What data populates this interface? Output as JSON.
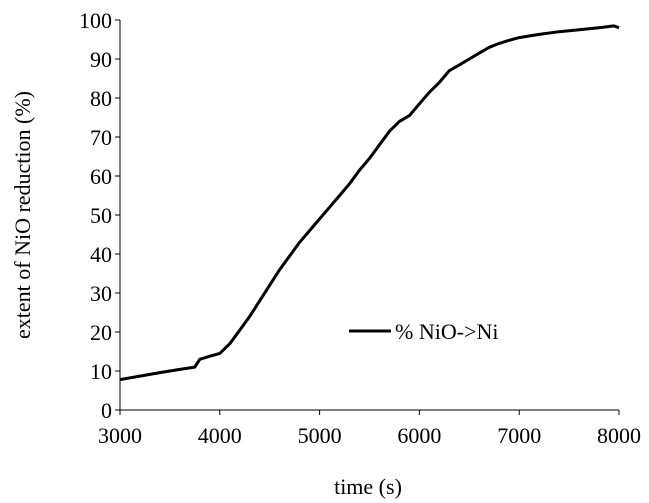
{
  "chart_data": {
    "type": "line",
    "title": "",
    "xlabel": "time (s)",
    "ylabel": "extent of NiO reduction (%)",
    "xlim": [
      3000,
      8000
    ],
    "ylim": [
      0,
      100
    ],
    "xticks": [
      3000,
      4000,
      5000,
      6000,
      7000,
      8000
    ],
    "yticks": [
      0,
      10,
      20,
      30,
      40,
      50,
      60,
      70,
      80,
      90,
      100
    ],
    "xtick_labels": [
      "3000",
      "4000",
      "5000",
      "6000",
      "7000",
      "8000"
    ],
    "ytick_labels": [
      "0",
      "10",
      "20",
      "30",
      "40",
      "50",
      "60",
      "70",
      "80",
      "90",
      "100"
    ],
    "grid": false,
    "legend_position": "lower-right",
    "series": [
      {
        "name": "% NiO->Ni",
        "color": "#000000",
        "x": [
          3000,
          3200,
          3400,
          3600,
          3750,
          3800,
          3900,
          4000,
          4100,
          4200,
          4300,
          4400,
          4500,
          4600,
          4700,
          4800,
          4900,
          5000,
          5100,
          5200,
          5300,
          5400,
          5500,
          5600,
          5700,
          5800,
          5900,
          6000,
          6100,
          6200,
          6300,
          6400,
          6500,
          6600,
          6700,
          6800,
          6900,
          7000,
          7200,
          7400,
          7600,
          7800,
          7950,
          8000
        ],
        "y": [
          7.8,
          8.7,
          9.6,
          10.4,
          11.0,
          13.0,
          13.8,
          14.5,
          17.0,
          20.5,
          24.0,
          28.0,
          32.0,
          36.0,
          39.5,
          43.0,
          46.0,
          49.0,
          52.0,
          55.0,
          58.0,
          61.5,
          64.5,
          68.0,
          71.5,
          74.0,
          75.5,
          78.5,
          81.5,
          84.0,
          87.0,
          88.5,
          90.0,
          91.5,
          93.0,
          94.0,
          94.8,
          95.5,
          96.3,
          97.0,
          97.5,
          98.0,
          98.5,
          98.0
        ]
      }
    ]
  }
}
